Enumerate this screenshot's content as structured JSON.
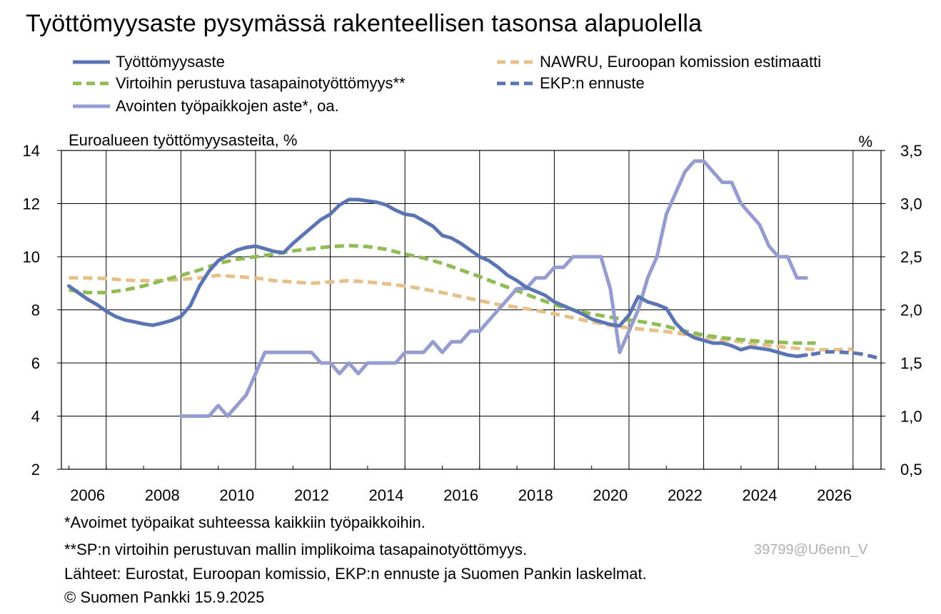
{
  "title": "Työttömyysaste pysymässä rakenteellisen tasonsa alapuolella",
  "chart_data": {
    "type": "line",
    "subtitle": "Euroalueen työttömyysasteita, %",
    "y2_unit_label": "%",
    "x_ticks": [
      "2006",
      "2008",
      "2010",
      "2012",
      "2014",
      "2016",
      "2018",
      "2020",
      "2022",
      "2024",
      "2026"
    ],
    "ylim": [
      2,
      14
    ],
    "y_ticks": [
      "2",
      "4",
      "6",
      "8",
      "10",
      "12",
      "14"
    ],
    "y2lim": [
      0.5,
      3.5
    ],
    "y2_ticks": [
      "0,5",
      "1,0",
      "1,5",
      "2,0",
      "2,5",
      "3,0",
      "3,5"
    ],
    "xlim": [
      2005.8,
      2027.75
    ],
    "grid": true,
    "colors": {
      "unemployment": "#5b74b4",
      "nawru": "#e6c088",
      "flow_equilibrium": "#8fbc55",
      "ecb_forecast": "#5b74b4",
      "vacancy": "#959ccf"
    },
    "series": [
      {
        "key": "unemployment",
        "name": "Työttömyysaste",
        "axis": "left",
        "style": "solid",
        "points": [
          [
            2006.0,
            8.9
          ],
          [
            2006.25,
            8.65
          ],
          [
            2006.5,
            8.4
          ],
          [
            2006.75,
            8.2
          ],
          [
            2007.0,
            7.95
          ],
          [
            2007.25,
            7.75
          ],
          [
            2007.5,
            7.62
          ],
          [
            2007.75,
            7.55
          ],
          [
            2008.0,
            7.47
          ],
          [
            2008.25,
            7.42
          ],
          [
            2008.5,
            7.5
          ],
          [
            2008.75,
            7.6
          ],
          [
            2009.0,
            7.75
          ],
          [
            2009.25,
            8.15
          ],
          [
            2009.5,
            8.9
          ],
          [
            2009.75,
            9.45
          ],
          [
            2010.0,
            9.85
          ],
          [
            2010.25,
            10.05
          ],
          [
            2010.5,
            10.25
          ],
          [
            2010.75,
            10.35
          ],
          [
            2011.0,
            10.4
          ],
          [
            2011.25,
            10.3
          ],
          [
            2011.5,
            10.2
          ],
          [
            2011.75,
            10.15
          ],
          [
            2012.0,
            10.5
          ],
          [
            2012.25,
            10.8
          ],
          [
            2012.5,
            11.1
          ],
          [
            2012.75,
            11.4
          ],
          [
            2013.0,
            11.6
          ],
          [
            2013.25,
            11.95
          ],
          [
            2013.5,
            12.15
          ],
          [
            2013.75,
            12.15
          ],
          [
            2014.0,
            12.1
          ],
          [
            2014.25,
            12.05
          ],
          [
            2014.5,
            11.95
          ],
          [
            2014.75,
            11.75
          ],
          [
            2015.0,
            11.6
          ],
          [
            2015.25,
            11.55
          ],
          [
            2015.5,
            11.35
          ],
          [
            2015.75,
            11.15
          ],
          [
            2016.0,
            10.8
          ],
          [
            2016.25,
            10.7
          ],
          [
            2016.5,
            10.5
          ],
          [
            2016.75,
            10.25
          ],
          [
            2017.0,
            10.0
          ],
          [
            2017.25,
            9.85
          ],
          [
            2017.5,
            9.6
          ],
          [
            2017.75,
            9.3
          ],
          [
            2018.0,
            9.1
          ],
          [
            2018.25,
            8.85
          ],
          [
            2018.5,
            8.7
          ],
          [
            2018.75,
            8.55
          ],
          [
            2019.0,
            8.3
          ],
          [
            2019.25,
            8.15
          ],
          [
            2019.5,
            8.0
          ],
          [
            2019.75,
            7.85
          ],
          [
            2020.0,
            7.65
          ],
          [
            2020.25,
            7.55
          ],
          [
            2020.5,
            7.45
          ],
          [
            2020.75,
            7.4
          ],
          [
            2021.0,
            7.8
          ],
          [
            2021.25,
            8.5
          ],
          [
            2021.5,
            8.3
          ],
          [
            2021.75,
            8.2
          ],
          [
            2022.0,
            8.05
          ],
          [
            2022.25,
            7.5
          ],
          [
            2022.5,
            7.15
          ],
          [
            2022.75,
            6.95
          ],
          [
            2023.0,
            6.85
          ],
          [
            2023.25,
            6.75
          ],
          [
            2023.5,
            6.75
          ],
          [
            2023.75,
            6.65
          ],
          [
            2024.0,
            6.5
          ],
          [
            2024.25,
            6.6
          ],
          [
            2024.5,
            6.55
          ],
          [
            2024.75,
            6.5
          ],
          [
            2025.0,
            6.4
          ],
          [
            2025.25,
            6.3
          ],
          [
            2025.5,
            6.25
          ],
          [
            2025.75,
            6.3
          ]
        ]
      },
      {
        "key": "nawru",
        "name": "NAWRU, Euroopan komission estimaatti",
        "axis": "left",
        "style": "dashed",
        "points": [
          [
            2006.0,
            9.2
          ],
          [
            2006.5,
            9.2
          ],
          [
            2007.0,
            9.18
          ],
          [
            2007.5,
            9.12
          ],
          [
            2008.0,
            9.1
          ],
          [
            2008.5,
            9.1
          ],
          [
            2009.0,
            9.15
          ],
          [
            2009.5,
            9.2
          ],
          [
            2010.0,
            9.3
          ],
          [
            2010.5,
            9.25
          ],
          [
            2011.0,
            9.2
          ],
          [
            2011.5,
            9.1
          ],
          [
            2012.0,
            9.05
          ],
          [
            2012.5,
            9.0
          ],
          [
            2013.0,
            9.05
          ],
          [
            2013.5,
            9.1
          ],
          [
            2014.0,
            9.05
          ],
          [
            2014.5,
            8.98
          ],
          [
            2015.0,
            8.9
          ],
          [
            2015.5,
            8.78
          ],
          [
            2016.0,
            8.65
          ],
          [
            2016.5,
            8.5
          ],
          [
            2017.0,
            8.35
          ],
          [
            2017.5,
            8.2
          ],
          [
            2018.0,
            8.1
          ],
          [
            2018.5,
            7.98
          ],
          [
            2019.0,
            7.85
          ],
          [
            2019.5,
            7.7
          ],
          [
            2020.0,
            7.55
          ],
          [
            2020.5,
            7.42
          ],
          [
            2021.0,
            7.32
          ],
          [
            2021.5,
            7.25
          ],
          [
            2022.0,
            7.18
          ],
          [
            2022.5,
            7.08
          ],
          [
            2023.0,
            6.98
          ],
          [
            2023.5,
            6.88
          ],
          [
            2024.0,
            6.8
          ],
          [
            2024.5,
            6.7
          ],
          [
            2025.0,
            6.62
          ],
          [
            2025.5,
            6.55
          ],
          [
            2026.0,
            6.5
          ],
          [
            2026.5,
            6.5
          ],
          [
            2027.0,
            6.52
          ]
        ]
      },
      {
        "key": "flow_equilibrium",
        "name": "Virtoihin perustuva tasapainotyöttömyys**",
        "axis": "left",
        "style": "dashed",
        "points": [
          [
            2006.0,
            8.75
          ],
          [
            2006.5,
            8.65
          ],
          [
            2007.0,
            8.65
          ],
          [
            2007.5,
            8.75
          ],
          [
            2008.0,
            8.9
          ],
          [
            2008.5,
            9.1
          ],
          [
            2009.0,
            9.3
          ],
          [
            2009.5,
            9.5
          ],
          [
            2010.0,
            9.75
          ],
          [
            2010.5,
            9.9
          ],
          [
            2011.0,
            10.0
          ],
          [
            2011.5,
            10.1
          ],
          [
            2012.0,
            10.22
          ],
          [
            2012.5,
            10.3
          ],
          [
            2013.0,
            10.38
          ],
          [
            2013.5,
            10.42
          ],
          [
            2014.0,
            10.38
          ],
          [
            2014.5,
            10.28
          ],
          [
            2015.0,
            10.1
          ],
          [
            2015.5,
            9.95
          ],
          [
            2016.0,
            9.75
          ],
          [
            2016.5,
            9.5
          ],
          [
            2017.0,
            9.25
          ],
          [
            2017.5,
            8.98
          ],
          [
            2018.0,
            8.72
          ],
          [
            2018.5,
            8.45
          ],
          [
            2019.0,
            8.2
          ],
          [
            2019.5,
            8.0
          ],
          [
            2020.0,
            7.85
          ],
          [
            2020.5,
            7.72
          ],
          [
            2021.0,
            7.62
          ],
          [
            2021.5,
            7.52
          ],
          [
            2022.0,
            7.38
          ],
          [
            2022.5,
            7.2
          ],
          [
            2023.0,
            7.05
          ],
          [
            2023.5,
            6.95
          ],
          [
            2024.0,
            6.88
          ],
          [
            2024.5,
            6.82
          ],
          [
            2025.0,
            6.78
          ],
          [
            2025.5,
            6.75
          ],
          [
            2026.0,
            6.75
          ]
        ]
      },
      {
        "key": "ecb_forecast",
        "name": "EKP:n ennuste",
        "axis": "left",
        "style": "dashed",
        "points": [
          [
            2025.5,
            6.25
          ],
          [
            2025.75,
            6.3
          ],
          [
            2026.0,
            6.35
          ],
          [
            2026.25,
            6.42
          ],
          [
            2026.5,
            6.42
          ],
          [
            2026.75,
            6.4
          ],
          [
            2027.0,
            6.38
          ],
          [
            2027.25,
            6.33
          ],
          [
            2027.5,
            6.25
          ],
          [
            2027.75,
            6.15
          ],
          [
            2028.0,
            6.1
          ],
          [
            2028.25,
            6.08
          ],
          [
            2028.5,
            6.0
          ]
        ]
      },
      {
        "key": "vacancy",
        "name": "Avointen työpaikkojen aste*, oa.",
        "axis": "right",
        "style": "solid",
        "points": [
          [
            2009.0,
            1.0
          ],
          [
            2009.5,
            1.0
          ],
          [
            2009.75,
            1.0
          ],
          [
            2010.0,
            1.1
          ],
          [
            2010.25,
            1.0
          ],
          [
            2010.5,
            1.1
          ],
          [
            2010.75,
            1.2
          ],
          [
            2011.0,
            1.4
          ],
          [
            2011.25,
            1.6
          ],
          [
            2011.5,
            1.6
          ],
          [
            2011.75,
            1.6
          ],
          [
            2012.0,
            1.6
          ],
          [
            2012.25,
            1.6
          ],
          [
            2012.5,
            1.6
          ],
          [
            2012.75,
            1.5
          ],
          [
            2013.0,
            1.5
          ],
          [
            2013.25,
            1.4
          ],
          [
            2013.5,
            1.5
          ],
          [
            2013.75,
            1.4
          ],
          [
            2014.0,
            1.5
          ],
          [
            2014.25,
            1.5
          ],
          [
            2014.5,
            1.5
          ],
          [
            2014.75,
            1.5
          ],
          [
            2015.0,
            1.6
          ],
          [
            2015.25,
            1.6
          ],
          [
            2015.5,
            1.6
          ],
          [
            2015.75,
            1.7
          ],
          [
            2016.0,
            1.6
          ],
          [
            2016.25,
            1.7
          ],
          [
            2016.5,
            1.7
          ],
          [
            2016.75,
            1.8
          ],
          [
            2017.0,
            1.8
          ],
          [
            2017.25,
            1.9
          ],
          [
            2017.5,
            2.0
          ],
          [
            2017.75,
            2.1
          ],
          [
            2018.0,
            2.2
          ],
          [
            2018.25,
            2.2
          ],
          [
            2018.5,
            2.3
          ],
          [
            2018.75,
            2.3
          ],
          [
            2019.0,
            2.4
          ],
          [
            2019.25,
            2.4
          ],
          [
            2019.5,
            2.5
          ],
          [
            2019.75,
            2.5
          ],
          [
            2020.0,
            2.5
          ],
          [
            2020.25,
            2.5
          ],
          [
            2020.5,
            2.2
          ],
          [
            2020.75,
            1.6
          ],
          [
            2021.0,
            1.8
          ],
          [
            2021.25,
            2.0
          ],
          [
            2021.5,
            2.3
          ],
          [
            2021.75,
            2.5
          ],
          [
            2022.0,
            2.9
          ],
          [
            2022.25,
            3.1
          ],
          [
            2022.5,
            3.3
          ],
          [
            2022.75,
            3.4
          ],
          [
            2023.0,
            3.4
          ],
          [
            2023.25,
            3.3
          ],
          [
            2023.5,
            3.2
          ],
          [
            2023.75,
            3.2
          ],
          [
            2024.0,
            3.0
          ],
          [
            2024.25,
            2.9
          ],
          [
            2024.5,
            2.8
          ],
          [
            2024.75,
            2.6
          ],
          [
            2025.0,
            2.5
          ],
          [
            2025.25,
            2.5
          ],
          [
            2025.5,
            2.3
          ],
          [
            2025.75,
            2.3
          ]
        ]
      }
    ]
  },
  "legend_labels": {
    "unemployment": "Työttömyysaste",
    "nawru": "NAWRU, Euroopan komission estimaatti",
    "flow_equilibrium": "Virtoihin perustuva tasapainotyöttömyys**",
    "ecb_forecast": "EKP:n ennuste",
    "vacancy": "Avointen työpaikkojen aste*, oa."
  },
  "footnotes": {
    "vacancy_note": "*Avoimet työpaikat suhteessa kaikkiin työpaikkoihin.",
    "model_note": "**SP:n virtoihin perustuvan mallin implikoima tasapainotyöttömyys.",
    "sources": "Lähteet: Eurostat, Euroopan komissio, EKP:n ennuste ja Suomen Pankin laskelmat.",
    "copyright": "© Suomen Pankki 15.9.2025"
  },
  "watermark": "39799@U6enn_V"
}
